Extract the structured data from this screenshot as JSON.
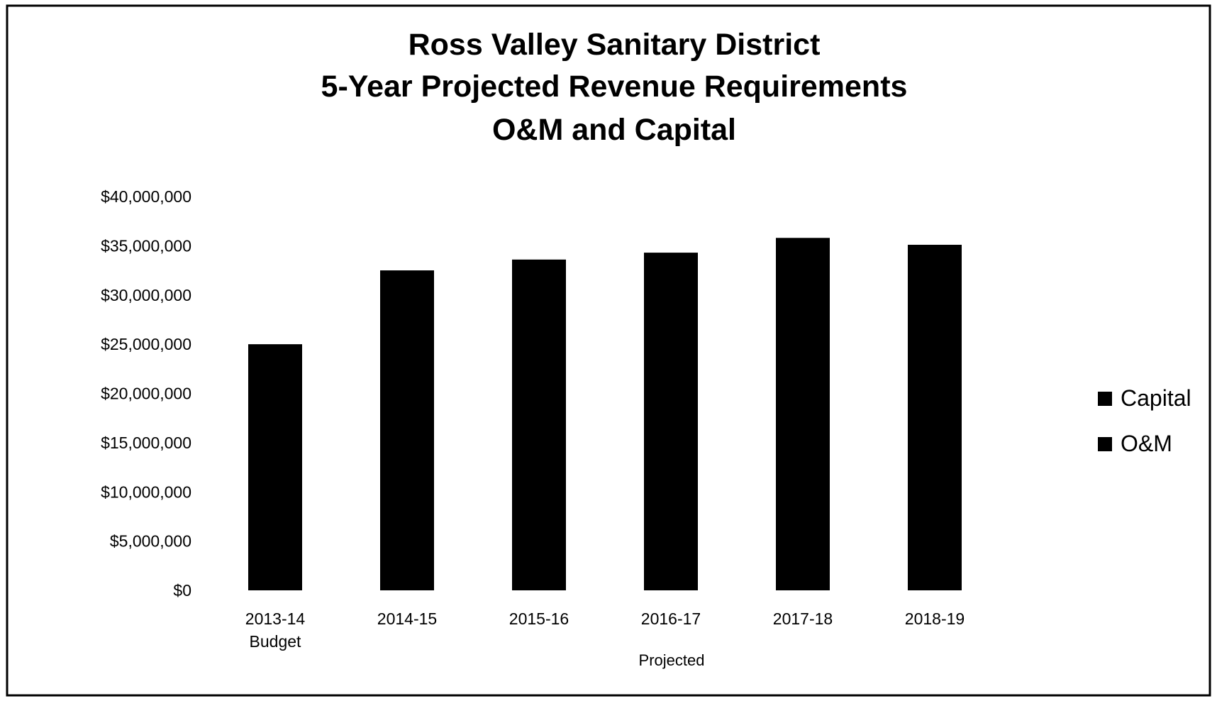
{
  "chart_data": {
    "type": "bar",
    "stacked": true,
    "title": [
      "Ross Valley Sanitary District",
      "5-Year Projected Revenue Requirements",
      "O&M and Capital"
    ],
    "categories": [
      "2013-14",
      "2014-15",
      "2015-16",
      "2016-17",
      "2017-18",
      "2018-19"
    ],
    "category_sublabels": [
      "Budget",
      "",
      "",
      "",
      "",
      ""
    ],
    "xlabel": "Projected",
    "ylabel": "",
    "ylim": [
      0,
      40000000
    ],
    "yticks": [
      0,
      5000000,
      10000000,
      15000000,
      20000000,
      25000000,
      30000000,
      35000000,
      40000000
    ],
    "ytick_labels": [
      "$0",
      "$5,000,000",
      "$10,000,000",
      "$15,000,000",
      "$20,000,000",
      "$25,000,000",
      "$30,000,000",
      "$35,000,000",
      "$40,000,000"
    ],
    "totals": [
      25000000,
      32500000,
      33600000,
      34300000,
      35800000,
      35100000
    ],
    "series": [
      {
        "name": "Capital",
        "color": "#000000"
      },
      {
        "name": "O&M",
        "color": "#000000"
      }
    ],
    "grid": false,
    "legend_position": "right"
  }
}
